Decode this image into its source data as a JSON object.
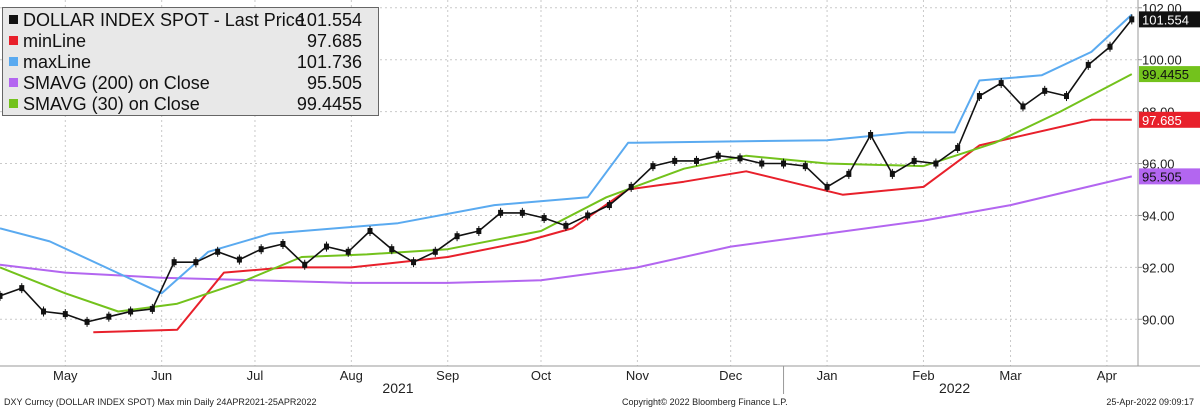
{
  "legend": {
    "items": [
      {
        "name": "DOLLAR INDEX SPOT - Last Price",
        "value": "101.554",
        "color": "#111111"
      },
      {
        "name": "minLine",
        "value": "97.685",
        "color": "#e8202b"
      },
      {
        "name": "maxLine",
        "value": "101.736",
        "color": "#5aaaf0"
      },
      {
        "name": "SMAVG (200)  on Close",
        "value": "95.505",
        "color": "#b366f0"
      },
      {
        "name": "SMAVG (30)  on Close",
        "value": "99.4455",
        "color": "#73c21c"
      }
    ]
  },
  "footer": {
    "left": "DXY Curncy (DOLLAR INDEX SPOT) Max min  Daily 24APR2021-25APR2022",
    "center": "Copyright© 2022 Bloomberg Finance L.P.",
    "right": "25-Apr-2022 09:09:17"
  },
  "chart_data": {
    "type": "line",
    "ylim": [
      88.2,
      102.3
    ],
    "yticks": [
      90.0,
      92.0,
      94.0,
      96.0,
      98.0,
      100.0,
      102.0
    ],
    "ytick_labels": [
      "90.00",
      "92.00",
      "94.00",
      "96.00",
      "98.00",
      "100.00",
      "102.00"
    ],
    "x_range": [
      "2021-04-24",
      "2022-04-25"
    ],
    "month_labels": [
      {
        "label": "May",
        "date": "2021-05-15"
      },
      {
        "label": "Jun",
        "date": "2021-06-15"
      },
      {
        "label": "Jul",
        "date": "2021-07-15"
      },
      {
        "label": "Aug",
        "date": "2021-08-15"
      },
      {
        "label": "Sep",
        "date": "2021-09-15"
      },
      {
        "label": "Oct",
        "date": "2021-10-15"
      },
      {
        "label": "Nov",
        "date": "2021-11-15"
      },
      {
        "label": "Dec",
        "date": "2021-12-15"
      },
      {
        "label": "Jan",
        "date": "2022-01-15"
      },
      {
        "label": "Feb",
        "date": "2022-02-15"
      },
      {
        "label": "Mar",
        "date": "2022-03-15"
      },
      {
        "label": "Apr",
        "date": "2022-04-15"
      }
    ],
    "year_labels": [
      {
        "label": "2021",
        "date": "2021-08-30"
      },
      {
        "label": "2022",
        "date": "2022-02-25"
      }
    ],
    "year_divider": "2022-01-01",
    "last_value_tags": [
      {
        "value": 101.554,
        "text": "101.554",
        "bg": "#111111",
        "fg": "#ffffff"
      },
      {
        "value": 99.4455,
        "text": "99.4455",
        "bg": "#73c21c",
        "fg": "#111111"
      },
      {
        "value": 97.685,
        "text": "97.685",
        "bg": "#e8202b",
        "fg": "#ffffff"
      },
      {
        "value": 95.505,
        "text": "95.505",
        "bg": "#b366f0",
        "fg": "#111111"
      }
    ],
    "series": [
      {
        "name": "DOLLAR INDEX SPOT - Last Price",
        "color": "#111111",
        "points": [
          [
            "2021-04-24",
            90.9
          ],
          [
            "2021-05-01",
            91.2
          ],
          [
            "2021-05-08",
            90.3
          ],
          [
            "2021-05-15",
            90.2
          ],
          [
            "2021-05-22",
            89.9
          ],
          [
            "2021-05-29",
            90.1
          ],
          [
            "2021-06-05",
            90.3
          ],
          [
            "2021-06-12",
            90.4
          ],
          [
            "2021-06-19",
            92.2
          ],
          [
            "2021-06-26",
            92.2
          ],
          [
            "2021-07-03",
            92.6
          ],
          [
            "2021-07-10",
            92.3
          ],
          [
            "2021-07-17",
            92.7
          ],
          [
            "2021-07-24",
            92.9
          ],
          [
            "2021-07-31",
            92.1
          ],
          [
            "2021-08-07",
            92.8
          ],
          [
            "2021-08-14",
            92.6
          ],
          [
            "2021-08-21",
            93.4
          ],
          [
            "2021-08-28",
            92.7
          ],
          [
            "2021-09-04",
            92.2
          ],
          [
            "2021-09-11",
            92.6
          ],
          [
            "2021-09-18",
            93.2
          ],
          [
            "2021-09-25",
            93.4
          ],
          [
            "2021-10-02",
            94.1
          ],
          [
            "2021-10-09",
            94.1
          ],
          [
            "2021-10-16",
            93.9
          ],
          [
            "2021-10-23",
            93.6
          ],
          [
            "2021-10-30",
            94.0
          ],
          [
            "2021-11-06",
            94.4
          ],
          [
            "2021-11-13",
            95.1
          ],
          [
            "2021-11-20",
            95.9
          ],
          [
            "2021-11-27",
            96.1
          ],
          [
            "2021-12-04",
            96.1
          ],
          [
            "2021-12-11",
            96.3
          ],
          [
            "2021-12-18",
            96.2
          ],
          [
            "2021-12-25",
            96.0
          ],
          [
            "2022-01-01",
            96.0
          ],
          [
            "2022-01-08",
            95.9
          ],
          [
            "2022-01-15",
            95.1
          ],
          [
            "2022-01-22",
            95.6
          ],
          [
            "2022-01-29",
            97.1
          ],
          [
            "2022-02-05",
            95.6
          ],
          [
            "2022-02-12",
            96.1
          ],
          [
            "2022-02-19",
            96.0
          ],
          [
            "2022-02-26",
            96.6
          ],
          [
            "2022-03-05",
            98.6
          ],
          [
            "2022-03-12",
            99.1
          ],
          [
            "2022-03-19",
            98.2
          ],
          [
            "2022-03-26",
            98.8
          ],
          [
            "2022-04-02",
            98.6
          ],
          [
            "2022-04-09",
            99.8
          ],
          [
            "2022-04-16",
            100.5
          ],
          [
            "2022-04-23",
            101.554
          ]
        ]
      },
      {
        "name": "minLine",
        "color": "#e8202b",
        "points": [
          [
            "2021-05-24",
            89.5
          ],
          [
            "2021-06-20",
            89.6
          ],
          [
            "2021-07-05",
            91.8
          ],
          [
            "2021-07-25",
            92.0
          ],
          [
            "2021-08-15",
            92.0
          ],
          [
            "2021-09-15",
            92.4
          ],
          [
            "2021-10-10",
            93.0
          ],
          [
            "2021-10-25",
            93.5
          ],
          [
            "2021-11-12",
            95.0
          ],
          [
            "2021-11-30",
            95.3
          ],
          [
            "2021-12-20",
            95.7
          ],
          [
            "2022-01-20",
            94.8
          ],
          [
            "2022-02-15",
            95.1
          ],
          [
            "2022-03-05",
            96.7
          ],
          [
            "2022-04-10",
            97.685
          ],
          [
            "2022-04-23",
            97.685
          ]
        ]
      },
      {
        "name": "maxLine",
        "color": "#5aaaf0",
        "points": [
          [
            "2021-04-24",
            93.5
          ],
          [
            "2021-05-10",
            93.0
          ],
          [
            "2021-06-15",
            91.0
          ],
          [
            "2021-06-30",
            92.6
          ],
          [
            "2021-07-20",
            93.3
          ],
          [
            "2021-08-30",
            93.7
          ],
          [
            "2021-09-30",
            94.4
          ],
          [
            "2021-10-30",
            94.7
          ],
          [
            "2021-11-12",
            96.8
          ],
          [
            "2022-01-15",
            96.9
          ],
          [
            "2022-02-10",
            97.2
          ],
          [
            "2022-02-25",
            97.2
          ],
          [
            "2022-03-05",
            99.2
          ],
          [
            "2022-03-25",
            99.4
          ],
          [
            "2022-04-10",
            100.3
          ],
          [
            "2022-04-23",
            101.736
          ]
        ]
      },
      {
        "name": "SMAVG (200)  on Close",
        "color": "#b366f0",
        "points": [
          [
            "2021-04-24",
            92.1
          ],
          [
            "2021-05-15",
            91.8
          ],
          [
            "2021-06-15",
            91.6
          ],
          [
            "2021-07-15",
            91.5
          ],
          [
            "2021-08-15",
            91.4
          ],
          [
            "2021-09-15",
            91.4
          ],
          [
            "2021-10-15",
            91.5
          ],
          [
            "2021-11-15",
            92.0
          ],
          [
            "2021-12-15",
            92.8
          ],
          [
            "2022-01-15",
            93.3
          ],
          [
            "2022-02-15",
            93.8
          ],
          [
            "2022-03-15",
            94.4
          ],
          [
            "2022-04-23",
            95.505
          ]
        ]
      },
      {
        "name": "SMAVG (30)  on Close",
        "color": "#73c21c",
        "points": [
          [
            "2021-04-24",
            92.0
          ],
          [
            "2021-05-15",
            91.0
          ],
          [
            "2021-06-01",
            90.3
          ],
          [
            "2021-06-20",
            90.6
          ],
          [
            "2021-07-10",
            91.4
          ],
          [
            "2021-07-30",
            92.4
          ],
          [
            "2021-08-20",
            92.5
          ],
          [
            "2021-09-15",
            92.7
          ],
          [
            "2021-10-15",
            93.4
          ],
          [
            "2021-11-05",
            94.7
          ],
          [
            "2021-11-30",
            95.8
          ],
          [
            "2021-12-20",
            96.3
          ],
          [
            "2022-01-15",
            96.0
          ],
          [
            "2022-02-15",
            95.9
          ],
          [
            "2022-03-10",
            96.8
          ],
          [
            "2022-03-31",
            98.0
          ],
          [
            "2022-04-23",
            99.4455
          ]
        ]
      }
    ]
  }
}
